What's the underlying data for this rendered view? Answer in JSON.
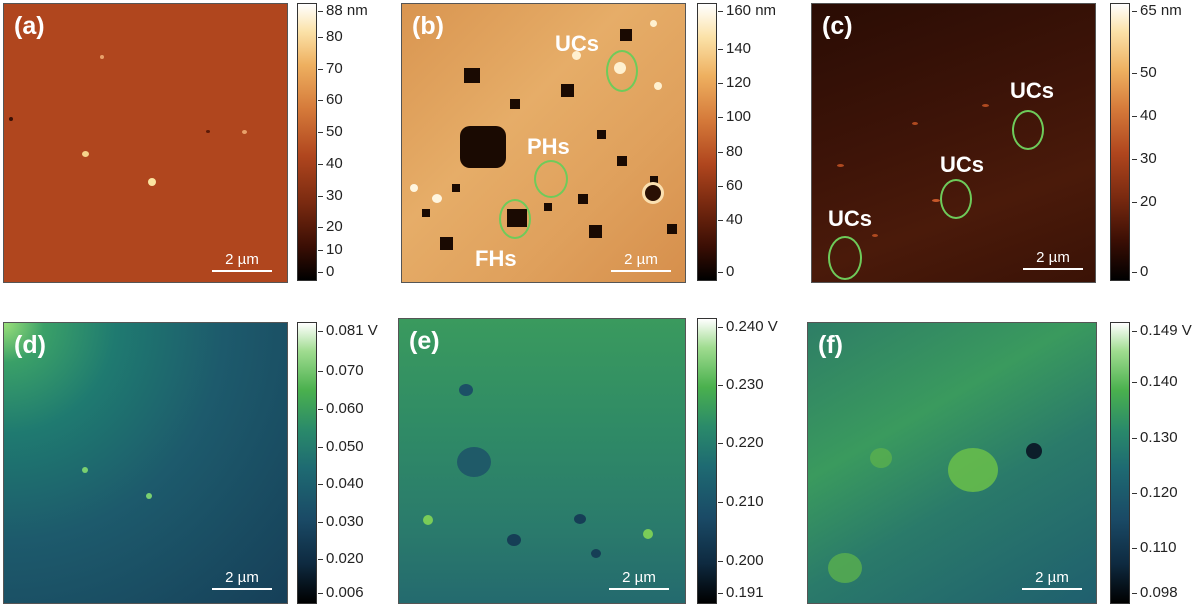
{
  "panels": {
    "a": {
      "label": "(a)",
      "scale": "2 µm"
    },
    "b": {
      "label": "(b)",
      "scale": "2 µm",
      "annotations": {
        "ucs": "UCs",
        "phs": "PHs",
        "fhs": "FHs"
      }
    },
    "c": {
      "label": "(c)",
      "scale": "2 µm",
      "annotations": {
        "ucs1": "UCs",
        "ucs2": "UCs",
        "ucs3": "UCs"
      }
    },
    "d": {
      "label": "(d)",
      "scale": "2 µm"
    },
    "e": {
      "label": "(e)",
      "scale": "2 µm"
    },
    "f": {
      "label": "(f)",
      "scale": "2 µm"
    }
  },
  "colorbars": {
    "a": [
      "88 nm",
      "80",
      "70",
      "60",
      "50",
      "40",
      "30",
      "20",
      "10",
      "0"
    ],
    "b": [
      "160 nm",
      "140",
      "120",
      "100",
      "80",
      "60",
      "40",
      "0"
    ],
    "c": [
      "65 nm",
      "50",
      "40",
      "30",
      "20",
      "0"
    ],
    "d": [
      "0.081 V",
      "0.070",
      "0.060",
      "0.050",
      "0.040",
      "0.030",
      "0.020",
      "0.006"
    ],
    "e": [
      "0.240 V",
      "0.230",
      "0.220",
      "0.210",
      "0.200",
      "0.191"
    ],
    "f": [
      "0.149 V",
      "0.140",
      "0.130",
      "0.120",
      "0.110",
      "0.098"
    ]
  },
  "colors": {
    "topo_a": "#b0461e",
    "topo_b": "#e0a25a",
    "topo_c": "#3a1206",
    "kpfm_d": "#1d5568",
    "kpfm_e": "#2b7c6a",
    "kpfm_f": "#2a7366",
    "circle": "#6ecb5a"
  }
}
